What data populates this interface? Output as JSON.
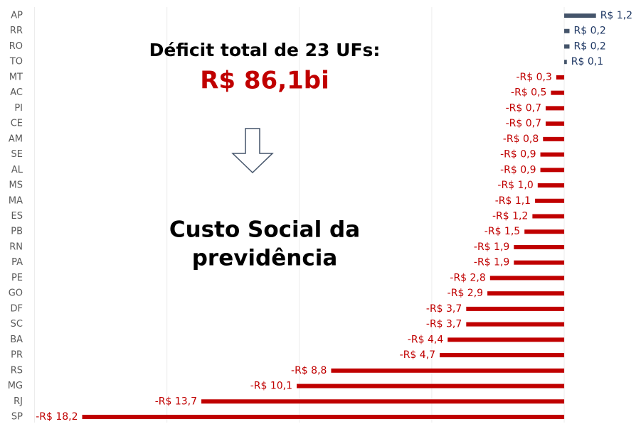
{
  "chart_data": {
    "type": "hbar",
    "annotations": [
      "Déficit total de 23 UFs:",
      "R$ 86,1bi",
      "Custo Social da",
      "previdência"
    ],
    "categories": [
      "AP",
      "RR",
      "RO",
      "TO",
      "MT",
      "AC",
      "PI",
      "CE",
      "AM",
      "SE",
      "AL",
      "MS",
      "MA",
      "ES",
      "PB",
      "RN",
      "PA",
      "PE",
      "GO",
      "DF",
      "SC",
      "BA",
      "PR",
      "RS",
      "MG",
      "RJ",
      "SP"
    ],
    "values": [
      1.2,
      0.2,
      0.2,
      0.1,
      -0.3,
      -0.5,
      -0.7,
      -0.7,
      -0.8,
      -0.9,
      -0.9,
      -1.0,
      -1.1,
      -1.2,
      -1.5,
      -1.9,
      -1.9,
      -2.8,
      -2.9,
      -3.7,
      -3.7,
      -4.4,
      -4.7,
      -8.8,
      -10.1,
      -13.7,
      -18.2
    ],
    "value_labels": [
      "R$ 1,2",
      "R$ 0,2",
      "R$ 0,2",
      "R$ 0,1",
      "-R$ 0,3",
      "-R$ 0,5",
      "-R$ 0,7",
      "-R$ 0,7",
      "-R$ 0,8",
      "-R$ 0,9",
      "-R$ 0,9",
      "-R$ 1,0",
      "-R$ 1,1",
      "-R$ 1,2",
      "-R$ 1,5",
      "-R$ 1,9",
      "-R$ 1,9",
      "-R$ 2,8",
      "-R$ 2,9",
      "-R$ 3,7",
      "-R$ 3,7",
      "-R$ 4,4",
      "-R$ 4,7",
      "-R$ 8,8",
      "-R$ 10,1",
      "-R$ 13,7",
      "-R$ 18,2"
    ],
    "positive_color": "#44546a",
    "positive_label_color": "#1f3864",
    "negative_color": "#c00000",
    "xlim": [
      -20,
      2
    ],
    "xticks": [
      -20,
      -15,
      -10,
      -5,
      0
    ],
    "grid": true
  }
}
